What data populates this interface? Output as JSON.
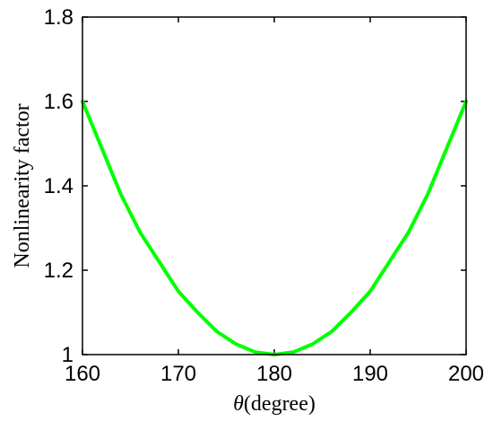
{
  "chart_data": {
    "type": "line",
    "title": "",
    "xlabel_symbol": "θ",
    "xlabel_text": "(degree)",
    "ylabel": "Nonlinearity factor",
    "xlim": [
      160,
      200
    ],
    "ylim": [
      1,
      1.8
    ],
    "x_ticks": [
      160,
      170,
      180,
      190,
      200
    ],
    "x_tick_labels": [
      "160",
      "170",
      "180",
      "190",
      "200"
    ],
    "y_ticks": [
      1,
      1.2,
      1.4,
      1.6,
      1.8
    ],
    "y_tick_labels": [
      "1",
      "1.2",
      "1.4",
      "1.6",
      "1.8"
    ],
    "grid": false,
    "series": [
      {
        "color": "#00ff00",
        "x": [
          160,
          162,
          164,
          166,
          168,
          170,
          172,
          174,
          176,
          178,
          180,
          182,
          184,
          186,
          188,
          190,
          192,
          194,
          196,
          198,
          200
        ],
        "values": [
          1.6,
          1.49,
          1.38,
          1.29,
          1.22,
          1.15,
          1.1,
          1.055,
          1.025,
          1.006,
          1.0,
          1.006,
          1.025,
          1.055,
          1.1,
          1.15,
          1.22,
          1.29,
          1.38,
          1.49,
          1.6
        ]
      }
    ]
  }
}
